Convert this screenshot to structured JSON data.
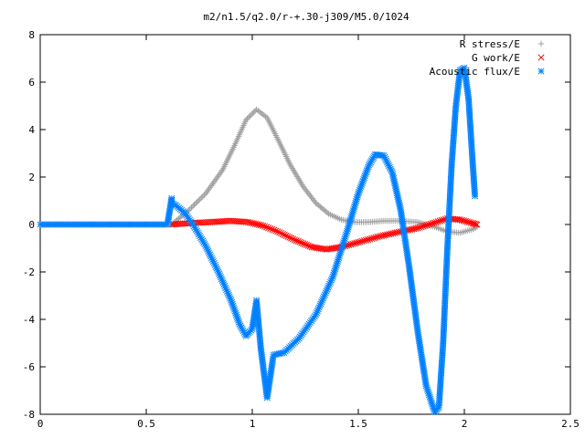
{
  "chart_data": {
    "type": "scatter",
    "title": "m2/n1.5/q2.0/r-+.30-j309/M5.0/1024",
    "xlabel": "",
    "ylabel": "",
    "xlim": [
      0,
      2.5
    ],
    "ylim": [
      -8,
      8
    ],
    "x_ticks": [
      0,
      0.5,
      1,
      1.5,
      2,
      2.5
    ],
    "x_tick_labels": [
      "0",
      "0.5",
      "1",
      "1.5",
      "2",
      "2.5"
    ],
    "y_ticks": [
      -8,
      -6,
      -4,
      -2,
      0,
      2,
      4,
      6,
      8
    ],
    "y_tick_labels": [
      "-8",
      "-6",
      "-4",
      "-2",
      "0",
      "2",
      "4",
      "6",
      "8"
    ],
    "grid": false,
    "legend": "top-right",
    "series": [
      {
        "name": "R stress/E",
        "marker": "plus",
        "color": "#a0a0a0",
        "x": [
          0.62,
          0.7,
          0.78,
          0.86,
          0.92,
          0.97,
          1.02,
          1.07,
          1.12,
          1.18,
          1.24,
          1.3,
          1.36,
          1.42,
          1.48,
          1.55,
          1.62,
          1.7,
          1.78,
          1.86,
          1.92,
          1.98,
          2.04,
          2.06
        ],
        "y": [
          0.0,
          0.6,
          1.3,
          2.3,
          3.4,
          4.4,
          4.85,
          4.5,
          3.6,
          2.5,
          1.6,
          0.9,
          0.45,
          0.2,
          0.1,
          0.1,
          0.15,
          0.15,
          0.1,
          -0.1,
          -0.3,
          -0.35,
          -0.2,
          -0.1
        ]
      },
      {
        "name": "G work/E",
        "marker": "cross",
        "color": "#ff0000",
        "x": [
          0.62,
          0.7,
          0.8,
          0.9,
          0.98,
          1.05,
          1.12,
          1.2,
          1.28,
          1.35,
          1.42,
          1.5,
          1.6,
          1.7,
          1.78,
          1.85,
          1.92,
          1.98,
          2.04,
          2.06
        ],
        "y": [
          0.0,
          0.05,
          0.1,
          0.15,
          0.1,
          -0.05,
          -0.3,
          -0.65,
          -0.95,
          -1.05,
          -0.95,
          -0.75,
          -0.5,
          -0.3,
          -0.15,
          0.05,
          0.25,
          0.2,
          0.05,
          0.0
        ]
      },
      {
        "name": "Acoustic flux/E",
        "marker": "star",
        "color": "#0080ff",
        "x": [
          0.0,
          0.1,
          0.2,
          0.3,
          0.4,
          0.5,
          0.6,
          0.62,
          0.62,
          0.64,
          0.68,
          0.72,
          0.78,
          0.84,
          0.9,
          0.94,
          0.97,
          1.0,
          1.02,
          1.04,
          1.07,
          1.1,
          1.15,
          1.22,
          1.3,
          1.38,
          1.45,
          1.5,
          1.55,
          1.58,
          1.62,
          1.66,
          1.7,
          1.74,
          1.78,
          1.82,
          1.86,
          1.88,
          1.9,
          1.92,
          1.94,
          1.96,
          1.98,
          2.0,
          2.02,
          2.04,
          2.05
        ],
        "y": [
          0.0,
          0.0,
          0.0,
          0.0,
          0.0,
          0.0,
          0.0,
          1.1,
          0.9,
          0.8,
          0.5,
          0.0,
          -0.9,
          -2.0,
          -3.2,
          -4.2,
          -4.7,
          -4.4,
          -3.2,
          -5.2,
          -7.3,
          -5.5,
          -5.4,
          -4.8,
          -3.8,
          -2.2,
          -0.2,
          1.3,
          2.5,
          2.95,
          2.9,
          2.2,
          0.6,
          -1.8,
          -4.5,
          -6.8,
          -7.9,
          -7.7,
          -5.0,
          -1.0,
          2.5,
          5.0,
          6.5,
          6.6,
          5.3,
          2.5,
          1.2
        ]
      }
    ]
  }
}
